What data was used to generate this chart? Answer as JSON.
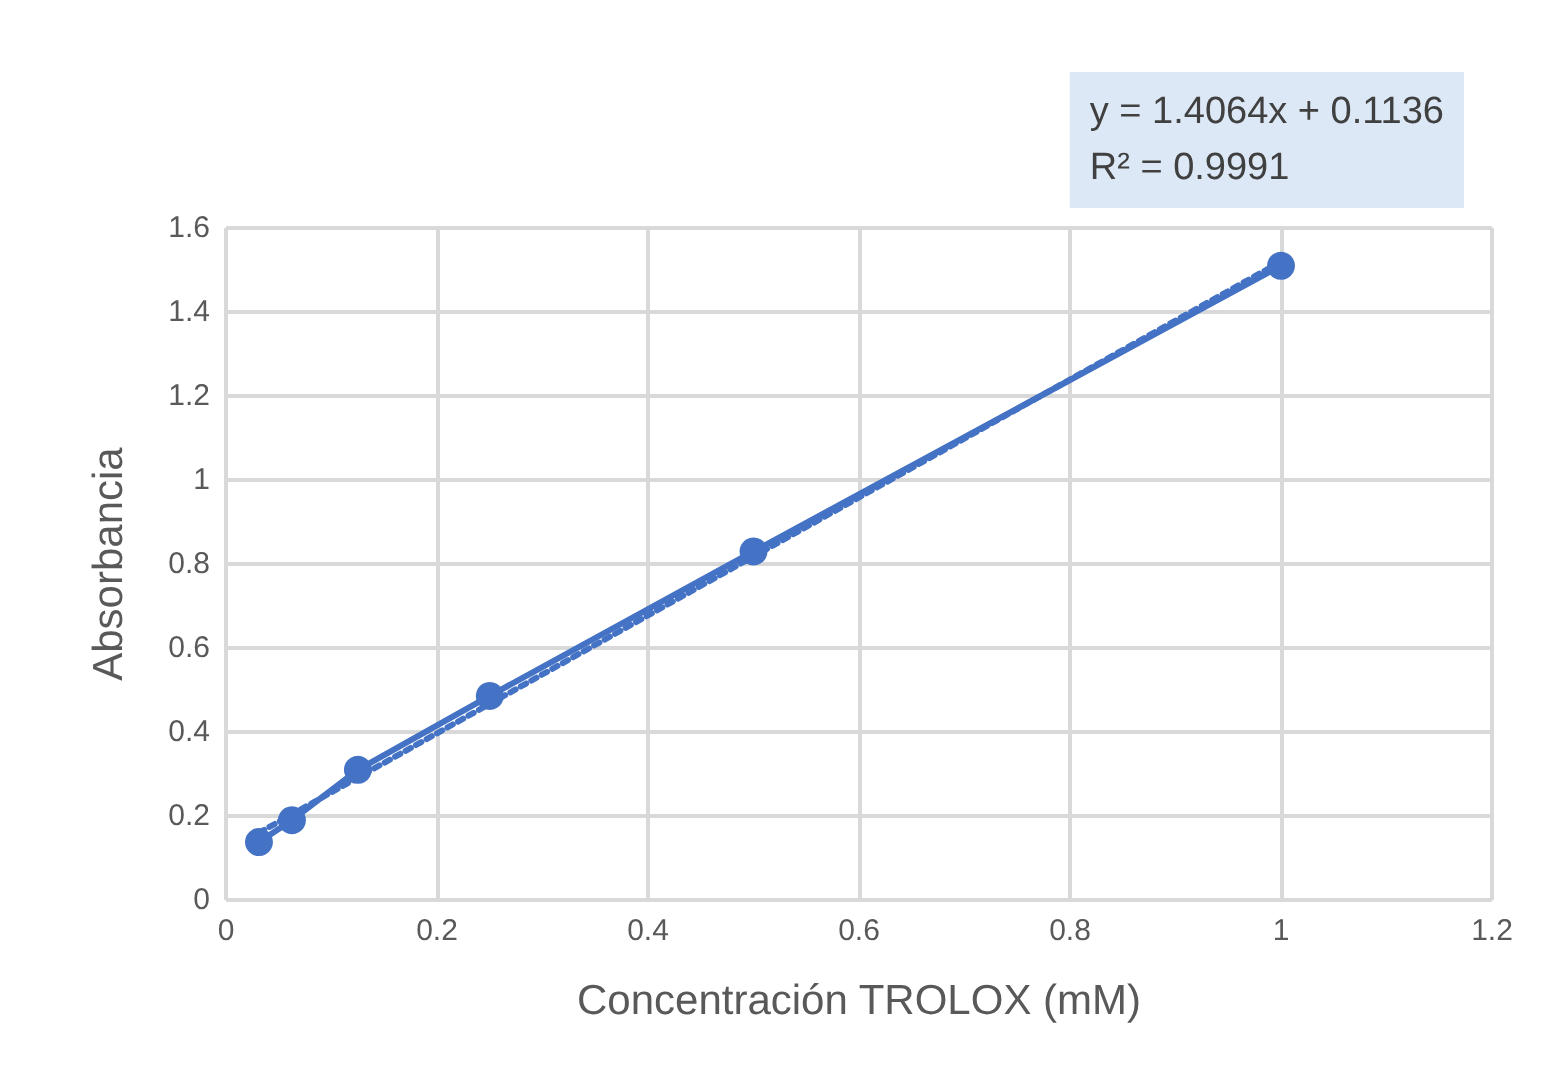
{
  "chart_data": {
    "type": "line",
    "xlabel": "Concentración TROLOX (mM)",
    "ylabel": "Absorbancia",
    "x": [
      0.03125,
      0.0625,
      0.125,
      0.25,
      0.5,
      1
    ],
    "series": [
      {
        "color": "#4472c4",
        "values": [
          0.138,
          0.19,
          0.31,
          0.486,
          0.83,
          1.51
        ],
        "marker": "circle",
        "line_style": "solid"
      },
      {
        "color": "#4472c4",
        "x": [
          0.03125,
          1
        ],
        "values": [
          0.16,
          1.52
        ],
        "marker": "none",
        "line_style": "dotted"
      }
    ],
    "xlim": [
      0,
      1.2
    ],
    "xticks": [
      0,
      0.2,
      0.4,
      0.6,
      0.8,
      1,
      1.2
    ],
    "ylim": [
      0,
      1.6
    ],
    "yticks": [
      0,
      0.2,
      0.4,
      0.6,
      0.8,
      1,
      1.2,
      1.4,
      1.6
    ],
    "grid": true,
    "annotations": [
      "y = 1.4064x + 0.1136\nR² = 0.9991"
    ]
  }
}
